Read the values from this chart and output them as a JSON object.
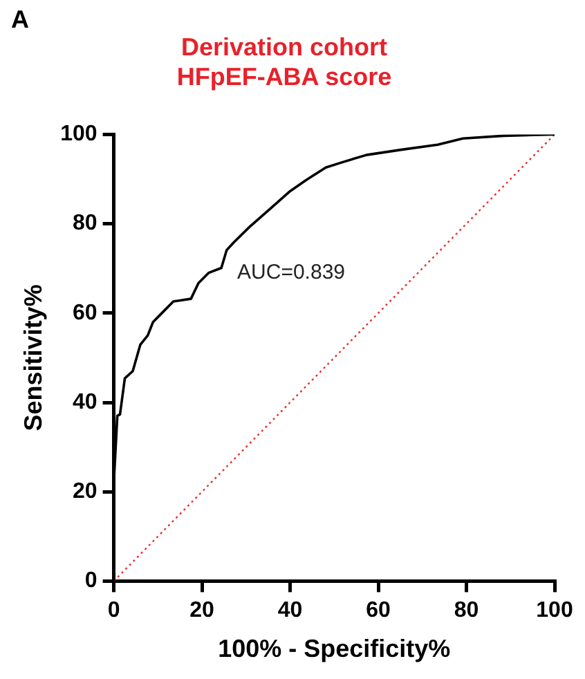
{
  "chart_data": {
    "type": "line",
    "title": "Derivation cohort\nHFpEF-ABA score",
    "xlabel": "100% - Specificity%",
    "ylabel": "Sensitivity%",
    "xlim": [
      0,
      100
    ],
    "xticks": [
      0,
      20,
      40,
      60,
      80,
      100
    ],
    "ylim": [
      0,
      100
    ],
    "yticks": [
      0,
      20,
      40,
      60,
      80,
      100
    ],
    "grid": false,
    "legend": false,
    "marker": "none",
    "series": [
      {
        "color": "#000000",
        "line_style": "solid",
        "x": [
          0,
          0,
          0.8,
          1.4,
          2.5,
          4.3,
          6,
          7.7,
          8.9,
          11.2,
          13.5,
          17.5,
          19.2,
          21.5,
          24.4,
          25.6,
          27.3,
          30.8,
          35.4,
          40,
          43.5,
          48.1,
          51.6,
          57.3,
          65.4,
          73.5,
          79.2,
          88.5,
          100
        ],
        "values": [
          0,
          22,
          37,
          37.3,
          45.4,
          47,
          52.9,
          55,
          58,
          60.3,
          62.6,
          63.2,
          66.7,
          69,
          70.1,
          74.1,
          75.9,
          79.3,
          83.3,
          87.3,
          89.7,
          92.6,
          93.7,
          95.4,
          96.6,
          97.7,
          99.1,
          99.7,
          100
        ]
      },
      {
        "color": "#e8312f",
        "line_style": "dotted",
        "x": [
          0,
          100
        ],
        "values": [
          0,
          100
        ]
      }
    ],
    "annotations": [
      "A",
      "AUC=0.839"
    ]
  }
}
